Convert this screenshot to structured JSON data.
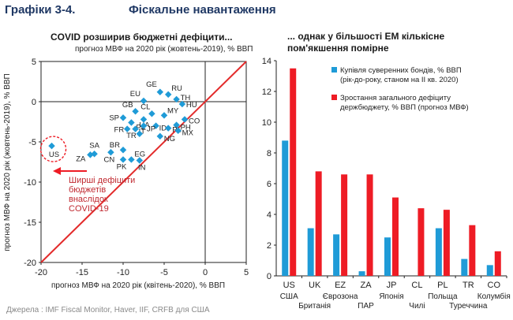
{
  "header": {
    "label": "Графіки 3-4.",
    "title": "Фіскальне навантаження"
  },
  "left_panel": {
    "subtitle": "COVID розширив бюджетні дефіцити...",
    "note": "прогноз МВФ на 2020 рік (жовтень-2019), % ВВП",
    "annotation": [
      "Ширші дефіцити",
      "бюджетів",
      "внаслідок",
      "COVID-19"
    ],
    "annotation_color": "#c0282f"
  },
  "right_panel": {
    "subtitle_lines": [
      "... однак у більшості ЕМ кількісне",
      "пом'якшення помірне"
    ]
  },
  "source": "Джерела : IMF Fiscal Monitor, Haver, IIF, CRFB для США",
  "colors": {
    "blue": "#1f9bd7",
    "red": "#ee1c25",
    "diagonal": "#e32b2b"
  },
  "chart_data": [
    {
      "type": "scatter",
      "xlabel": "прогноз МВФ на 2020 рік (квітень-2020), % ВВП",
      "ylabel": "прогноз МВФ на 2020 рік (жовтень-2019), % ВВП",
      "xlim": [
        -20,
        5
      ],
      "ylim": [
        -20,
        5
      ],
      "xticks": [
        -20,
        -15,
        -10,
        -5,
        0,
        5
      ],
      "yticks": [
        5,
        0,
        -5,
        -10,
        -15,
        -20
      ],
      "diagonal_line": true,
      "points": [
        {
          "label": "GE",
          "x": -5.5,
          "y": 1.2
        },
        {
          "label": "RU",
          "x": -4.5,
          "y": 0.9
        },
        {
          "label": "EU",
          "x": -7.5,
          "y": 0.1
        },
        {
          "label": "TH",
          "x": -3.5,
          "y": 0.3
        },
        {
          "label": "HU",
          "x": -2.8,
          "y": -0.3
        },
        {
          "label": "GB",
          "x": -8.5,
          "y": -1.2
        },
        {
          "label": "CL",
          "x": -6.5,
          "y": -1.5
        },
        {
          "label": "MY",
          "x": -5.0,
          "y": -1.7
        },
        {
          "label": "SP",
          "x": -10.0,
          "y": -2.0
        },
        {
          "label": "UA",
          "x": -7.5,
          "y": -2.2
        },
        {
          "label": "CO",
          "x": -2.5,
          "y": -2.2
        },
        {
          "label": "PE",
          "x": -9.0,
          "y": -2.6
        },
        {
          "label": "PH",
          "x": -3.5,
          "y": -2.9
        },
        {
          "label": "ID",
          "x": -6.0,
          "y": -3.0
        },
        {
          "label": "FR",
          "x": -9.5,
          "y": -3.4
        },
        {
          "label": "IT",
          "x": -8.5,
          "y": -3.4
        },
        {
          "label": "JP",
          "x": -7.5,
          "y": -3.0
        },
        {
          "label": "PL",
          "x": -4.5,
          "y": -3.3
        },
        {
          "label": "MX",
          "x": -3.3,
          "y": -3.6
        },
        {
          "label": "TR",
          "x": -8.0,
          "y": -4.0
        },
        {
          "label": "NG",
          "x": -5.5,
          "y": -4.3
        },
        {
          "label": "US",
          "x": -18.7,
          "y": -5.5
        },
        {
          "label": "SA",
          "x": -13.5,
          "y": -6.5
        },
        {
          "label": "BR",
          "x": -10.0,
          "y": -6.0
        },
        {
          "label": "EG",
          "x": -9.0,
          "y": -7.2
        },
        {
          "label": "ZA",
          "x": -14.0,
          "y": -6.6
        },
        {
          "label": "CN",
          "x": -11.5,
          "y": -6.3
        },
        {
          "label": "PK",
          "x": -10.0,
          "y": -7.2
        },
        {
          "label": "IN",
          "x": -8.0,
          "y": -7.3
        }
      ]
    },
    {
      "type": "bar",
      "categories": [
        "US",
        "UK",
        "EZ",
        "ZA",
        "JP",
        "CL",
        "PL",
        "TR",
        "CO"
      ],
      "category_names": [
        "США",
        "Британія",
        "Єврозона",
        "ПАР",
        "Японія",
        "Чилі",
        "Польща",
        "Туреччина",
        "Колумбія"
      ],
      "ylim": [
        0,
        14
      ],
      "yticks": [
        0,
        2,
        4,
        6,
        8,
        10,
        12,
        14
      ],
      "series": [
        {
          "name": "Купівля суверенних бондів, % ВВП (рік-до-року, станом на ІІ кв. 2020)",
          "legend_lines": [
            "Купівля суверенних бондів, % ВВП",
            "(рік-до-року, станом на ІІ кв. 2020)"
          ],
          "values": [
            8.8,
            3.1,
            2.7,
            0.3,
            2.5,
            0.0,
            3.1,
            1.1,
            0.7
          ]
        },
        {
          "name": "Зростання загального дефіциту держбюджету, % ВВП (прогноз МВФ)",
          "legend_lines": [
            "Зростання загального дефіциту",
            "держбюджету, % ВВП (прогноз МВФ)"
          ],
          "values": [
            13.5,
            6.8,
            6.6,
            6.6,
            5.1,
            4.4,
            4.3,
            3.3,
            1.6
          ]
        }
      ]
    }
  ]
}
